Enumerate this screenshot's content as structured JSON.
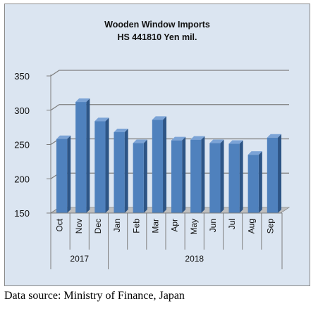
{
  "source": "Data source: Ministry of Finance, Japan",
  "chart_data": {
    "type": "bar",
    "title": "Wooden Window Imports",
    "subtitle": "HS 441810 Yen mil.",
    "categories": [
      "Oct",
      "Nov",
      "Dec",
      "Jan",
      "Feb",
      "Mar",
      "Apr",
      "May",
      "Jun",
      "Jul",
      "Aug",
      "Sep"
    ],
    "groups": [
      {
        "label": "2017",
        "count": 3
      },
      {
        "label": "2018",
        "count": 9
      }
    ],
    "values": [
      258,
      312,
      284,
      268,
      252,
      286,
      256,
      257,
      252,
      251,
      235,
      260
    ],
    "ylim": [
      150,
      350
    ],
    "yticks": [
      150,
      200,
      250,
      300,
      350
    ],
    "grid": true,
    "legend": "none",
    "colors": {
      "bar": "#4f81bd",
      "bar_top": "#7ba3d6",
      "bar_side": "#2d5586",
      "grid": "#7f7f7f"
    }
  }
}
